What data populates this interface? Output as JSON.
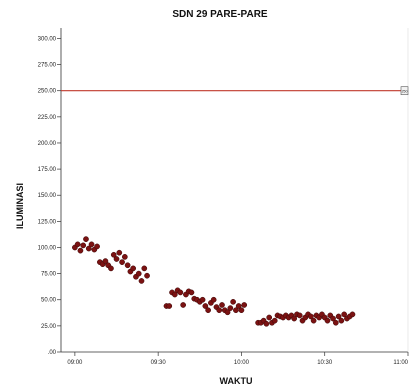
{
  "chart_data": {
    "type": "scatter",
    "title": "SDN 29 PARE-PARE",
    "xlabel": "WAKTU",
    "ylabel": "ILUMINASI",
    "x_ticks": [
      "09:00",
      "09:30",
      "10:00",
      "10:30",
      "11:00"
    ],
    "x_range": [
      "08:55",
      "11:00"
    ],
    "y_ticks": [
      ".00",
      "25.00",
      "50.00",
      "75.00",
      "100.00",
      "125.00",
      "150.00",
      "175.00",
      "200.00",
      "225.00",
      "250.00",
      "275.00",
      "300.00"
    ],
    "ylim": [
      0,
      310
    ],
    "grid": false,
    "reference_line": {
      "y": 250,
      "color": "#c0392b",
      "marker_text": "250"
    },
    "marker_color": "#7b1212",
    "series": [
      {
        "points": [
          [
            "09:00",
            100
          ],
          [
            "09:01",
            103
          ],
          [
            "09:02",
            97
          ],
          [
            "09:03",
            102
          ],
          [
            "09:04",
            108
          ],
          [
            "09:05",
            99
          ],
          [
            "09:06",
            103
          ],
          [
            "09:07",
            98
          ],
          [
            "09:08",
            101
          ],
          [
            "09:09",
            86
          ],
          [
            "09:10",
            84
          ],
          [
            "09:11",
            87
          ],
          [
            "09:12",
            83
          ],
          [
            "09:13",
            80
          ],
          [
            "09:14",
            93
          ],
          [
            "09:15",
            89
          ],
          [
            "09:16",
            95
          ],
          [
            "09:17",
            86
          ],
          [
            "09:18",
            91
          ],
          [
            "09:19",
            83
          ],
          [
            "09:20",
            77
          ],
          [
            "09:21",
            80
          ],
          [
            "09:22",
            72
          ],
          [
            "09:23",
            75
          ],
          [
            "09:24",
            68
          ],
          [
            "09:25",
            80
          ],
          [
            "09:26",
            73
          ],
          [
            "09:33",
            44
          ],
          [
            "09:34",
            44
          ],
          [
            "09:35",
            57
          ],
          [
            "09:36",
            55
          ],
          [
            "09:37",
            59
          ],
          [
            "09:38",
            57
          ],
          [
            "09:39",
            45
          ],
          [
            "09:40",
            55
          ],
          [
            "09:41",
            58
          ],
          [
            "09:42",
            57
          ],
          [
            "09:43",
            51
          ],
          [
            "09:44",
            50
          ],
          [
            "09:45",
            48
          ],
          [
            "09:46",
            50
          ],
          [
            "09:47",
            44
          ],
          [
            "09:48",
            40
          ],
          [
            "09:49",
            47
          ],
          [
            "09:50",
            50
          ],
          [
            "09:51",
            43
          ],
          [
            "09:52",
            40
          ],
          [
            "09:53",
            45
          ],
          [
            "09:54",
            40
          ],
          [
            "09:55",
            38
          ],
          [
            "09:56",
            42
          ],
          [
            "09:57",
            48
          ],
          [
            "09:58",
            40
          ],
          [
            "09:59",
            44
          ],
          [
            "10:00",
            40
          ],
          [
            "10:01",
            45
          ],
          [
            "10:06",
            28
          ],
          [
            "10:07",
            28
          ],
          [
            "10:08",
            30
          ],
          [
            "10:09",
            27
          ],
          [
            "10:10",
            33
          ],
          [
            "10:11",
            28
          ],
          [
            "10:12",
            30
          ],
          [
            "10:13",
            35
          ],
          [
            "10:14",
            34
          ],
          [
            "10:15",
            33
          ],
          [
            "10:16",
            35
          ],
          [
            "10:17",
            33
          ],
          [
            "10:18",
            35
          ],
          [
            "10:19",
            32
          ],
          [
            "10:20",
            36
          ],
          [
            "10:21",
            35
          ],
          [
            "10:22",
            30
          ],
          [
            "10:23",
            33
          ],
          [
            "10:24",
            36
          ],
          [
            "10:25",
            34
          ],
          [
            "10:26",
            30
          ],
          [
            "10:27",
            35
          ],
          [
            "10:28",
            33
          ],
          [
            "10:29",
            36
          ],
          [
            "10:30",
            33
          ],
          [
            "10:31",
            30
          ],
          [
            "10:32",
            35
          ],
          [
            "10:33",
            32
          ],
          [
            "10:34",
            28
          ],
          [
            "10:35",
            34
          ],
          [
            "10:36",
            30
          ],
          [
            "10:37",
            36
          ],
          [
            "10:38",
            32
          ],
          [
            "10:39",
            34
          ],
          [
            "10:40",
            36
          ]
        ]
      }
    ]
  }
}
